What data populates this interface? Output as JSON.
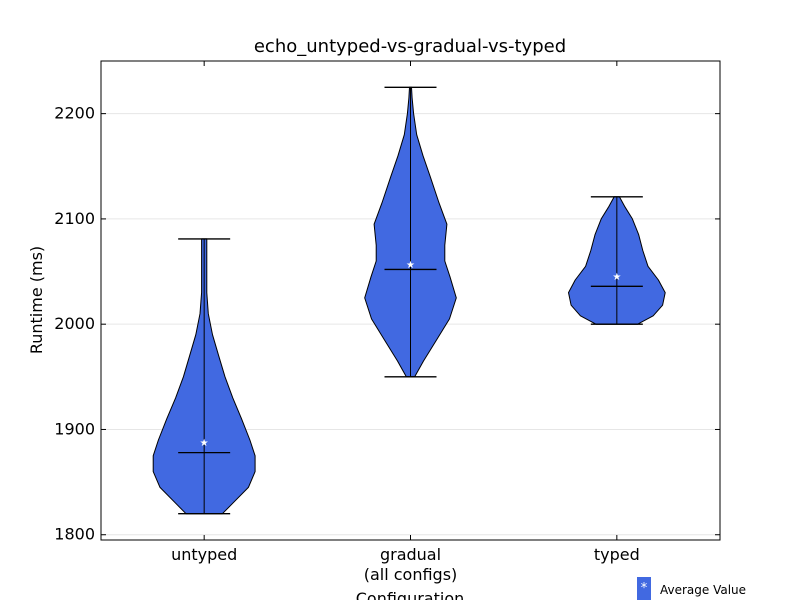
{
  "chart_data": {
    "type": "violin",
    "title": "echo_untyped-vs-gradual-vs-typed",
    "ylabel": "Runtime (ms)",
    "xlabel": "Configuration",
    "ylim": [
      1795,
      2250
    ],
    "yticks": [
      1800,
      1900,
      2000,
      2100,
      2200
    ],
    "grid": "horizontal",
    "fill_color": "#4169e1",
    "categories": [
      {
        "label": "untyped",
        "sublabel": ""
      },
      {
        "label": "gradual",
        "sublabel": "(all configs)"
      },
      {
        "label": "typed",
        "sublabel": ""
      }
    ],
    "series": [
      {
        "label": "untyped",
        "min": 1820,
        "max": 2081,
        "median": 1878,
        "mean": 1888,
        "density": [
          [
            1820,
            0.35
          ],
          [
            1830,
            0.55
          ],
          [
            1845,
            0.85
          ],
          [
            1860,
            0.98
          ],
          [
            1875,
            0.98
          ],
          [
            1890,
            0.88
          ],
          [
            1910,
            0.72
          ],
          [
            1930,
            0.55
          ],
          [
            1950,
            0.4
          ],
          [
            1970,
            0.28
          ],
          [
            1990,
            0.16
          ],
          [
            2010,
            0.08
          ],
          [
            2030,
            0.05
          ],
          [
            2050,
            0.05
          ],
          [
            2070,
            0.05
          ],
          [
            2081,
            0.05
          ]
        ]
      },
      {
        "label": "gradual",
        "min": 1950,
        "max": 2225,
        "median": 2052,
        "mean": 2057,
        "density": [
          [
            1950,
            0.08
          ],
          [
            1965,
            0.25
          ],
          [
            1985,
            0.5
          ],
          [
            2005,
            0.75
          ],
          [
            2025,
            0.88
          ],
          [
            2045,
            0.76
          ],
          [
            2060,
            0.66
          ],
          [
            2075,
            0.66
          ],
          [
            2095,
            0.7
          ],
          [
            2115,
            0.55
          ],
          [
            2140,
            0.38
          ],
          [
            2160,
            0.24
          ],
          [
            2180,
            0.12
          ],
          [
            2200,
            0.06
          ],
          [
            2215,
            0.03
          ],
          [
            2225,
            0.02
          ]
        ]
      },
      {
        "label": "typed",
        "min": 2000,
        "max": 2121,
        "median": 2036,
        "mean": 2046,
        "density": [
          [
            2000,
            0.4
          ],
          [
            2008,
            0.7
          ],
          [
            2018,
            0.88
          ],
          [
            2030,
            0.93
          ],
          [
            2042,
            0.8
          ],
          [
            2055,
            0.6
          ],
          [
            2070,
            0.5
          ],
          [
            2085,
            0.42
          ],
          [
            2100,
            0.3
          ],
          [
            2112,
            0.15
          ],
          [
            2121,
            0.05
          ]
        ]
      }
    ],
    "legend": {
      "marker": "*",
      "label": "Average Value",
      "placement": "bottom-right"
    }
  }
}
